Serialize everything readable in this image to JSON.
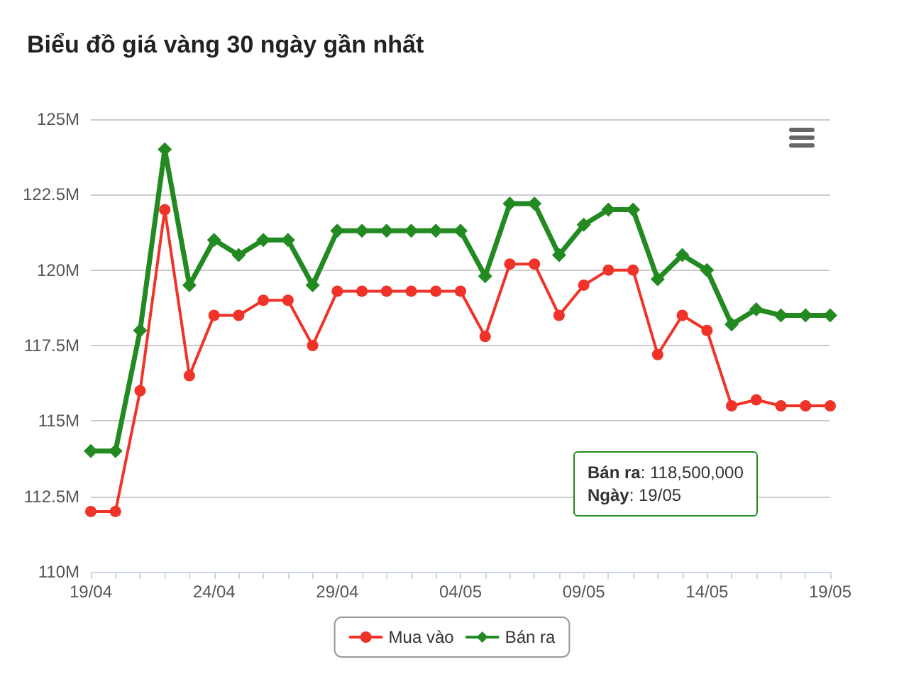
{
  "chart_data": {
    "type": "line",
    "title": "Biểu đồ giá vàng 30 ngày gần nhất",
    "categories": [
      "19/04",
      null,
      null,
      null,
      null,
      "24/04",
      null,
      null,
      null,
      null,
      "29/04",
      null,
      null,
      null,
      null,
      "04/05",
      null,
      null,
      null,
      null,
      "09/05",
      null,
      null,
      null,
      null,
      "14/05",
      null,
      null,
      null,
      null,
      "19/05"
    ],
    "series": [
      {
        "name": "Mua vào",
        "color": "#f03329",
        "marker": "circle",
        "values": [
          112,
          112,
          116,
          122,
          116.5,
          118.5,
          118.5,
          119,
          119,
          117.5,
          119.3,
          119.3,
          119.3,
          119.3,
          119.3,
          119.3,
          117.8,
          120.2,
          120.2,
          118.5,
          119.5,
          120,
          120,
          117.2,
          118.5,
          118,
          115.5,
          115.7,
          115.5,
          115.5,
          115.5
        ]
      },
      {
        "name": "Bán ra",
        "color": "#238a22",
        "marker": "diamond",
        "values": [
          114,
          114,
          118,
          124,
          119.5,
          121,
          120.5,
          121,
          121,
          119.5,
          121.3,
          121.3,
          121.3,
          121.3,
          121.3,
          121.3,
          119.8,
          122.2,
          122.2,
          120.5,
          121.5,
          122,
          122,
          119.7,
          120.5,
          120,
          118.2,
          118.7,
          118.5,
          118.5,
          118.5
        ]
      }
    ],
    "ylim": [
      110,
      125
    ],
    "yticks": [
      {
        "value": 110,
        "label": "110M"
      },
      {
        "value": 112.5,
        "label": "112.5M"
      },
      {
        "value": 115,
        "label": "115M"
      },
      {
        "value": 117.5,
        "label": "117.5M"
      },
      {
        "value": 120,
        "label": "120M"
      },
      {
        "value": 122.5,
        "label": "122.5M"
      },
      {
        "value": 125,
        "label": "125M"
      }
    ],
    "grid": "y",
    "legend": "bottom",
    "line_style": "solid",
    "annotations": [
      "Bán ra: 118,500,000\nNgày: 19/05"
    ]
  }
}
